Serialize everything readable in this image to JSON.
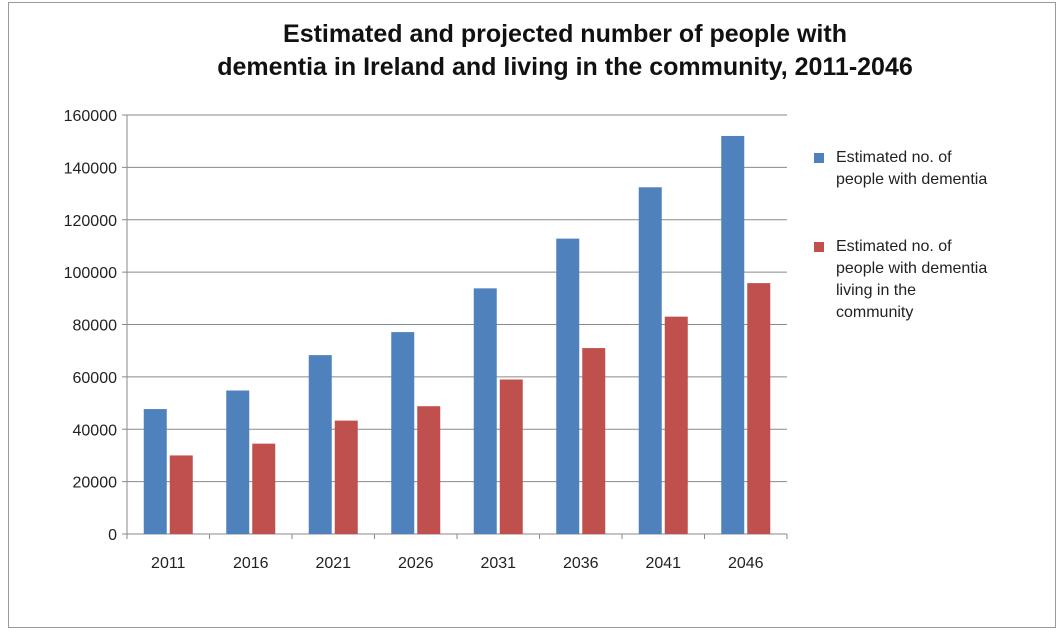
{
  "chart_data": {
    "type": "bar",
    "title_lines": [
      "Estimated and projected number of people with",
      "dementia in Ireland and living in the community, 2011-2046"
    ],
    "categories": [
      "2011",
      "2016",
      "2021",
      "2026",
      "2031",
      "2036",
      "2041",
      "2046"
    ],
    "series": [
      {
        "name": "Estimated no. of people with dementia",
        "name_lines": [
          "Estimated no. of",
          "people with dementia"
        ],
        "color": "#4f81bd",
        "values": [
          47700,
          54800,
          68300,
          77100,
          93800,
          112800,
          132400,
          152000
        ]
      },
      {
        "name": "Estimated no. of people with dementia living in the community",
        "name_lines": [
          "Estimated no. of",
          "people with dementia",
          "living in the",
          "community"
        ],
        "color": "#c0504d",
        "values": [
          30000,
          34500,
          43300,
          48800,
          59000,
          71000,
          83000,
          95800
        ]
      }
    ],
    "ylim": [
      0,
      160000
    ],
    "yticks": [
      0,
      20000,
      40000,
      60000,
      80000,
      100000,
      120000,
      140000,
      160000
    ],
    "ytick_labels": [
      "0",
      "20000",
      "40000",
      "60000",
      "80000",
      "100000",
      "120000",
      "140000",
      "160000"
    ],
    "grid": true,
    "legend_position": "right",
    "xlabel": "",
    "ylabel": ""
  }
}
